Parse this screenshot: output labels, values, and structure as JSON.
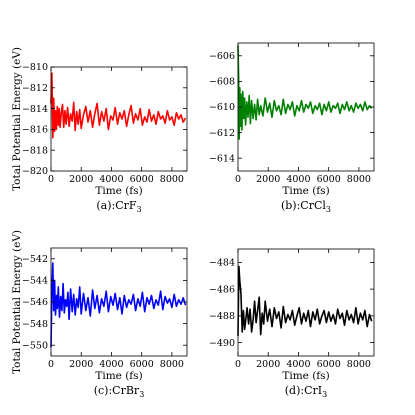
{
  "chart_data": [
    {
      "type": "line",
      "caption": "(a):CrF",
      "caption_sub": "3",
      "xlabel": "Time (fs)",
      "ylabel": "Total Potential Energy (eV)",
      "xlim": [
        0,
        9000
      ],
      "ylim": [
        -820,
        -810
      ],
      "xticks": [
        0,
        2000,
        4000,
        6000,
        8000
      ],
      "yticks": [
        -820,
        -818,
        -816,
        -814,
        -812,
        -810
      ],
      "color": "#ff0000",
      "series": [
        {
          "x": [
            0,
            60,
            120,
            180,
            240,
            300,
            360,
            420,
            480,
            540,
            600,
            680,
            760,
            840,
            920,
            1000,
            1100,
            1200,
            1300,
            1400,
            1500,
            1600,
            1700,
            1800,
            1900,
            2000,
            2150,
            2300,
            2450,
            2600,
            2750,
            2900,
            3050,
            3200,
            3350,
            3500,
            3650,
            3800,
            3950,
            4100,
            4250,
            4400,
            4550,
            4700,
            4850,
            5000,
            5150,
            5300,
            5450,
            5600,
            5750,
            5900,
            6050,
            6200,
            6350,
            6500,
            6650,
            6800,
            6950,
            7100,
            7250,
            7400,
            7550,
            7700,
            7850,
            8000,
            8150,
            8300,
            8450,
            8600,
            8750,
            8900
          ],
          "y": [
            -813.5,
            -810.6,
            -816.8,
            -813.0,
            -816.2,
            -814.2,
            -816.0,
            -813.8,
            -815.6,
            -814.0,
            -815.8,
            -814.4,
            -813.6,
            -815.8,
            -814.2,
            -815.5,
            -813.9,
            -815.7,
            -814.5,
            -815.2,
            -813.4,
            -816.1,
            -814.3,
            -815.5,
            -814.1,
            -815.9,
            -814.6,
            -813.8,
            -815.3,
            -814.2,
            -815.8,
            -814.5,
            -813.5,
            -815.6,
            -814.3,
            -815.2,
            -814.0,
            -816.0,
            -814.7,
            -815.1,
            -813.9,
            -815.5,
            -814.4,
            -815.0,
            -814.2,
            -815.7,
            -814.6,
            -813.7,
            -815.4,
            -814.5,
            -815.1,
            -814.0,
            -815.6,
            -814.8,
            -815.3,
            -814.1,
            -815.2,
            -814.6,
            -815.5,
            -814.3,
            -815.0,
            -814.7,
            -815.4,
            -814.2,
            -815.1,
            -814.8,
            -815.6,
            -814.4,
            -815.0,
            -814.6,
            -815.3,
            -814.9
          ]
        }
      ]
    },
    {
      "type": "line",
      "caption": "(b):CrCl",
      "caption_sub": "3",
      "xlabel": "Time (fs)",
      "ylabel": "",
      "xlim": [
        0,
        9000
      ],
      "ylim": [
        -615,
        -605
      ],
      "xticks": [
        0,
        2000,
        4000,
        6000,
        8000
      ],
      "yticks": [
        -614,
        -612,
        -610,
        -608,
        -606
      ],
      "color": "#008000",
      "series": [
        {
          "x": [
            0,
            40,
            80,
            120,
            160,
            200,
            260,
            320,
            380,
            440,
            500,
            580,
            660,
            740,
            820,
            900,
            1000,
            1100,
            1200,
            1300,
            1400,
            1500,
            1650,
            1800,
            1950,
            2100,
            2250,
            2400,
            2550,
            2700,
            2850,
            3000,
            3150,
            3300,
            3450,
            3600,
            3750,
            3900,
            4050,
            4200,
            4350,
            4500,
            4650,
            4800,
            4950,
            5100,
            5250,
            5400,
            5550,
            5700,
            5850,
            6000,
            6150,
            6300,
            6450,
            6600,
            6750,
            6900,
            7050,
            7200,
            7350,
            7500,
            7650,
            7800,
            7950,
            8100,
            8250,
            8400,
            8550,
            8700,
            8850
          ],
          "y": [
            -605.2,
            -607.5,
            -612.5,
            -608.5,
            -611.5,
            -609.0,
            -611.8,
            -608.8,
            -610.9,
            -609.3,
            -611.4,
            -609.6,
            -610.8,
            -609.1,
            -611.3,
            -609.5,
            -610.9,
            -609.8,
            -611.0,
            -609.4,
            -610.6,
            -609.9,
            -610.7,
            -609.3,
            -610.4,
            -609.7,
            -610.8,
            -609.5,
            -610.3,
            -609.9,
            -610.6,
            -609.4,
            -610.5,
            -609.8,
            -610.2,
            -609.6,
            -610.7,
            -609.9,
            -610.3,
            -609.5,
            -610.4,
            -609.8,
            -610.1,
            -609.6,
            -610.5,
            -609.9,
            -610.2,
            -609.7,
            -610.6,
            -609.8,
            -610.3,
            -609.6,
            -610.4,
            -609.9,
            -610.1,
            -609.7,
            -610.5,
            -609.8,
            -610.2,
            -609.6,
            -610.3,
            -609.9,
            -610.4,
            -609.7,
            -610.1,
            -609.8,
            -610.3,
            -609.6,
            -610.2,
            -609.9,
            -610.1
          ]
        }
      ]
    },
    {
      "type": "line",
      "caption": "(c):CrBr",
      "caption_sub": "3",
      "xlabel": "Time (fs)",
      "ylabel": "Total Potential Energy (eV)",
      "xlim": [
        0,
        9000
      ],
      "ylim": [
        -551,
        -541
      ],
      "xticks": [
        0,
        2000,
        4000,
        6000,
        8000
      ],
      "yticks": [
        -550,
        -548,
        -546,
        -544,
        -542
      ],
      "color": "#0000ff",
      "series": [
        {
          "x": [
            0,
            60,
            120,
            180,
            240,
            300,
            360,
            420,
            480,
            560,
            640,
            720,
            800,
            880,
            960,
            1040,
            1120,
            1200,
            1300,
            1400,
            1500,
            1600,
            1700,
            1800,
            1900,
            2000,
            2150,
            2300,
            2450,
            2600,
            2750,
            2900,
            3050,
            3200,
            3350,
            3500,
            3650,
            3800,
            3950,
            4100,
            4250,
            4400,
            4550,
            4700,
            4850,
            5000,
            5150,
            5300,
            5450,
            5600,
            5750,
            5900,
            6050,
            6200,
            6350,
            6500,
            6650,
            6800,
            6950,
            7100,
            7250,
            7400,
            7550,
            7700,
            7850,
            8000,
            8150,
            8300,
            8450,
            8600,
            8750,
            8900
          ],
          "y": [
            -550.2,
            -545.0,
            -542.4,
            -546.8,
            -544.0,
            -547.2,
            -545.4,
            -546.6,
            -544.6,
            -547.4,
            -545.5,
            -546.8,
            -544.3,
            -547.0,
            -545.8,
            -546.4,
            -545.1,
            -547.6,
            -544.8,
            -546.9,
            -545.3,
            -547.2,
            -545.7,
            -546.5,
            -544.6,
            -547.1,
            -545.2,
            -546.8,
            -545.6,
            -547.3,
            -544.9,
            -546.6,
            -545.4,
            -547.0,
            -545.7,
            -546.4,
            -545.0,
            -546.9,
            -545.5,
            -546.3,
            -545.2,
            -546.7,
            -545.6,
            -547.1,
            -545.4,
            -546.5,
            -545.8,
            -546.2,
            -545.3,
            -546.8,
            -545.7,
            -546.4,
            -545.1,
            -546.9,
            -545.6,
            -546.2,
            -545.4,
            -546.6,
            -545.8,
            -546.3,
            -545.0,
            -546.7,
            -545.5,
            -546.1,
            -545.7,
            -546.5,
            -545.3,
            -546.4,
            -545.8,
            -546.2,
            -545.6,
            -546.3
          ]
        }
      ]
    },
    {
      "type": "line",
      "caption": "(d):CrI",
      "caption_sub": "3",
      "xlabel": "Time (fs)",
      "ylabel": "",
      "xlim": [
        0,
        9000
      ],
      "ylim": [
        -491,
        -483
      ],
      "xticks": [
        0,
        2000,
        4000,
        6000,
        8000
      ],
      "yticks": [
        -490,
        -488,
        -486,
        -484
      ],
      "color": "#000000",
      "series": [
        {
          "x": [
            0,
            60,
            120,
            200,
            280,
            360,
            440,
            520,
            600,
            700,
            800,
            900,
            1000,
            1100,
            1200,
            1300,
            1400,
            1500,
            1600,
            1700,
            1800,
            1950,
            2100,
            2250,
            2400,
            2550,
            2700,
            2850,
            3000,
            3150,
            3300,
            3450,
            3600,
            3750,
            3900,
            4050,
            4200,
            4350,
            4500,
            4650,
            4800,
            4950,
            5100,
            5250,
            5400,
            5550,
            5700,
            5850,
            6000,
            6150,
            6300,
            6450,
            6600,
            6750,
            6900,
            7050,
            7200,
            7350,
            7500,
            7650,
            7800,
            7950,
            8100,
            8250,
            8400,
            8550,
            8700,
            8850
          ],
          "y": [
            -489.5,
            -484.3,
            -485.4,
            -486.4,
            -489.2,
            -487.6,
            -489.0,
            -488.2,
            -487.4,
            -488.6,
            -487.5,
            -489.2,
            -488.3,
            -486.9,
            -488.5,
            -487.6,
            -486.6,
            -489.4,
            -487.8,
            -488.6,
            -486.9,
            -488.4,
            -487.5,
            -488.8,
            -487.4,
            -488.2,
            -487.7,
            -488.9,
            -487.3,
            -488.5,
            -487.9,
            -488.3,
            -487.6,
            -488.7,
            -488.0,
            -487.4,
            -488.6,
            -487.8,
            -488.4,
            -487.6,
            -488.8,
            -487.7,
            -488.3,
            -487.5,
            -488.6,
            -488.0,
            -487.6,
            -488.5,
            -487.7,
            -488.4,
            -487.9,
            -488.6,
            -487.5,
            -488.2,
            -487.8,
            -488.7,
            -487.6,
            -488.3,
            -487.9,
            -488.5,
            -487.4,
            -488.6,
            -487.8,
            -488.3,
            -487.6,
            -488.8,
            -487.9,
            -488.4
          ]
        }
      ]
    }
  ]
}
